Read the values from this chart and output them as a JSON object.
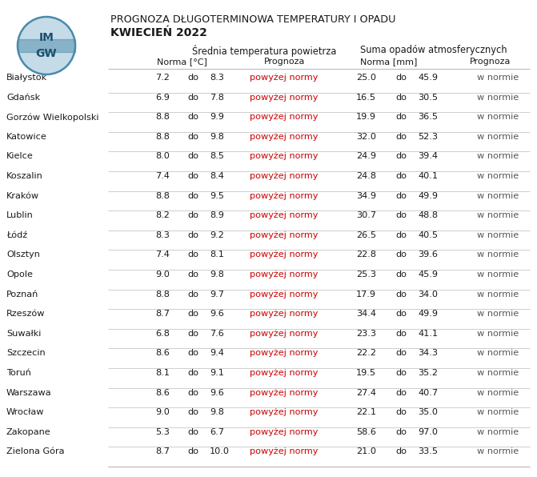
{
  "title_line1": "PROGNOZA DŁUGOTERMINOWA TEMPERATURY I OPADU",
  "title_line2": "KWIECIEŃ 2022",
  "cities": [
    "Białystok",
    "Gdańsk",
    "Gorzów Wielkopolski",
    "Katowice",
    "Kielce",
    "Koszalin",
    "Kraków",
    "Lublin",
    "Łódź",
    "Olsztyn",
    "Opole",
    "Poznań",
    "Rzeszów",
    "Suwałki",
    "Szczecin",
    "Toruń",
    "Warszawa",
    "Wrocław",
    "Zakopane",
    "Zielona Góra"
  ],
  "temp_norma_low": [
    7.2,
    6.9,
    8.8,
    8.8,
    8.0,
    7.4,
    8.8,
    8.2,
    8.3,
    7.4,
    9.0,
    8.8,
    8.7,
    6.8,
    8.6,
    8.1,
    8.6,
    9.0,
    5.3,
    8.7
  ],
  "temp_norma_high": [
    8.3,
    7.8,
    9.9,
    9.8,
    8.5,
    8.4,
    9.5,
    8.9,
    9.2,
    8.1,
    9.8,
    9.7,
    9.6,
    7.6,
    9.4,
    9.1,
    9.6,
    9.8,
    6.7,
    10.0
  ],
  "temp_prognoza": "powyżej normy",
  "precip_norma_low": [
    25.0,
    16.5,
    19.9,
    32.0,
    24.9,
    24.8,
    34.9,
    30.7,
    26.5,
    22.8,
    25.3,
    17.9,
    34.4,
    23.3,
    22.2,
    19.5,
    27.4,
    22.1,
    58.6,
    21.0
  ],
  "precip_norma_high": [
    45.9,
    30.5,
    36.5,
    52.3,
    39.4,
    40.1,
    49.9,
    48.8,
    40.5,
    39.6,
    45.9,
    34.0,
    49.9,
    41.1,
    34.3,
    35.2,
    40.7,
    35.0,
    97.0,
    33.5
  ],
  "precip_prognoza": "w normie",
  "bg_color": "#ffffff",
  "text_color": "#1a1a1a",
  "red_color": "#cc0000",
  "dark_gray": "#555555",
  "line_color": "#bbbbbb",
  "logo_bg": "#c5dce8",
  "logo_border": "#4a8aaa",
  "logo_text": "#1a4f6e",
  "logo_stripe": "#4a8aaa"
}
